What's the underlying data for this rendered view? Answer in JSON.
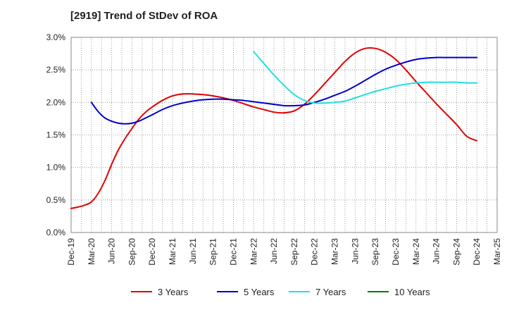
{
  "chart_data": {
    "type": "line",
    "title": "[2919]  Trend of StDev of ROA",
    "categories": [
      "Dec-19",
      "Mar-20",
      "Jun-20",
      "Sep-20",
      "Dec-20",
      "Mar-21",
      "Jun-21",
      "Sep-21",
      "Dec-21",
      "Mar-22",
      "Jun-22",
      "Sep-22",
      "Dec-22",
      "Mar-23",
      "Jun-23",
      "Sep-23",
      "Dec-23",
      "Mar-24",
      "Jun-24",
      "Sep-24",
      "Dec-24",
      "Mar-25"
    ],
    "y_tick_labels": [
      "0.0%",
      "0.5%",
      "1.0%",
      "1.5%",
      "2.0%",
      "2.5%",
      "3.0%"
    ],
    "ylim": [
      0,
      3.0
    ],
    "grid": true,
    "legend_position": "bottom",
    "colors": {
      "3 Years": "#e00000",
      "5 Years": "#0000cc",
      "7 Years": "#22e0e0",
      "10 Years": "#008000"
    },
    "series": [
      {
        "name": "3 Years",
        "color": "#e00000",
        "x": [
          0,
          0.33,
          0.67,
          1.0,
          1.33,
          1.67,
          2.0,
          2.33,
          2.67,
          3.0,
          3.33,
          3.67,
          4.0,
          4.5,
          5.0,
          5.5,
          6.0,
          6.5,
          7.0,
          7.5,
          8.0,
          8.5,
          9.0,
          9.5,
          10.0,
          10.5,
          11.0,
          11.5,
          12.0,
          12.5,
          13.0,
          13.5,
          14.0,
          14.5,
          15.0,
          15.5,
          16.0,
          16.5,
          17.0,
          17.5,
          18.0,
          18.5,
          19.0,
          19.5,
          20.0
        ],
        "values": [
          0.37,
          0.39,
          0.42,
          0.47,
          0.6,
          0.8,
          1.05,
          1.27,
          1.45,
          1.6,
          1.74,
          1.85,
          1.93,
          2.03,
          2.1,
          2.13,
          2.13,
          2.12,
          2.1,
          2.07,
          2.03,
          1.98,
          1.93,
          1.89,
          1.85,
          1.84,
          1.87,
          1.97,
          2.12,
          2.29,
          2.46,
          2.63,
          2.76,
          2.83,
          2.83,
          2.77,
          2.66,
          2.5,
          2.32,
          2.15,
          1.98,
          1.82,
          1.66,
          1.48,
          1.41
        ]
      },
      {
        "name": "5 Years",
        "color": "#0000cc",
        "x": [
          1.0,
          1.33,
          1.67,
          2.0,
          2.33,
          2.67,
          3.0,
          3.33,
          3.67,
          4.0,
          4.5,
          5.0,
          5.5,
          6.0,
          6.5,
          7.0,
          7.5,
          8.0,
          8.5,
          9.0,
          9.5,
          10.0,
          10.5,
          11.0,
          11.5,
          12.0,
          12.5,
          13.0,
          13.5,
          14.0,
          14.5,
          15.0,
          15.5,
          16.0,
          16.5,
          17.0,
          17.5,
          18.0,
          18.5,
          19.0,
          19.5,
          20.0
        ],
        "values": [
          2.0,
          1.86,
          1.76,
          1.71,
          1.68,
          1.67,
          1.68,
          1.71,
          1.76,
          1.81,
          1.89,
          1.95,
          1.99,
          2.02,
          2.04,
          2.05,
          2.05,
          2.04,
          2.03,
          2.01,
          1.99,
          1.97,
          1.95,
          1.95,
          1.96,
          2.0,
          2.05,
          2.11,
          2.17,
          2.25,
          2.34,
          2.43,
          2.51,
          2.57,
          2.62,
          2.66,
          2.68,
          2.69,
          2.69,
          2.69,
          2.69,
          2.69
        ]
      },
      {
        "name": "7 Years",
        "color": "#22e0e0",
        "x": [
          9.0,
          9.5,
          10.0,
          10.5,
          11.0,
          11.5,
          12.0,
          12.5,
          13.0,
          13.5,
          14.0,
          14.5,
          15.0,
          15.5,
          16.0,
          16.5,
          17.0,
          17.5,
          18.0,
          18.5,
          19.0,
          19.5,
          20.0
        ],
        "values": [
          2.78,
          2.6,
          2.42,
          2.26,
          2.12,
          2.03,
          1.99,
          1.99,
          2.0,
          2.02,
          2.07,
          2.12,
          2.17,
          2.21,
          2.25,
          2.28,
          2.3,
          2.31,
          2.31,
          2.31,
          2.31,
          2.3,
          2.3
        ]
      },
      {
        "name": "10 Years",
        "color": "#008000",
        "x": [],
        "values": []
      }
    ]
  }
}
